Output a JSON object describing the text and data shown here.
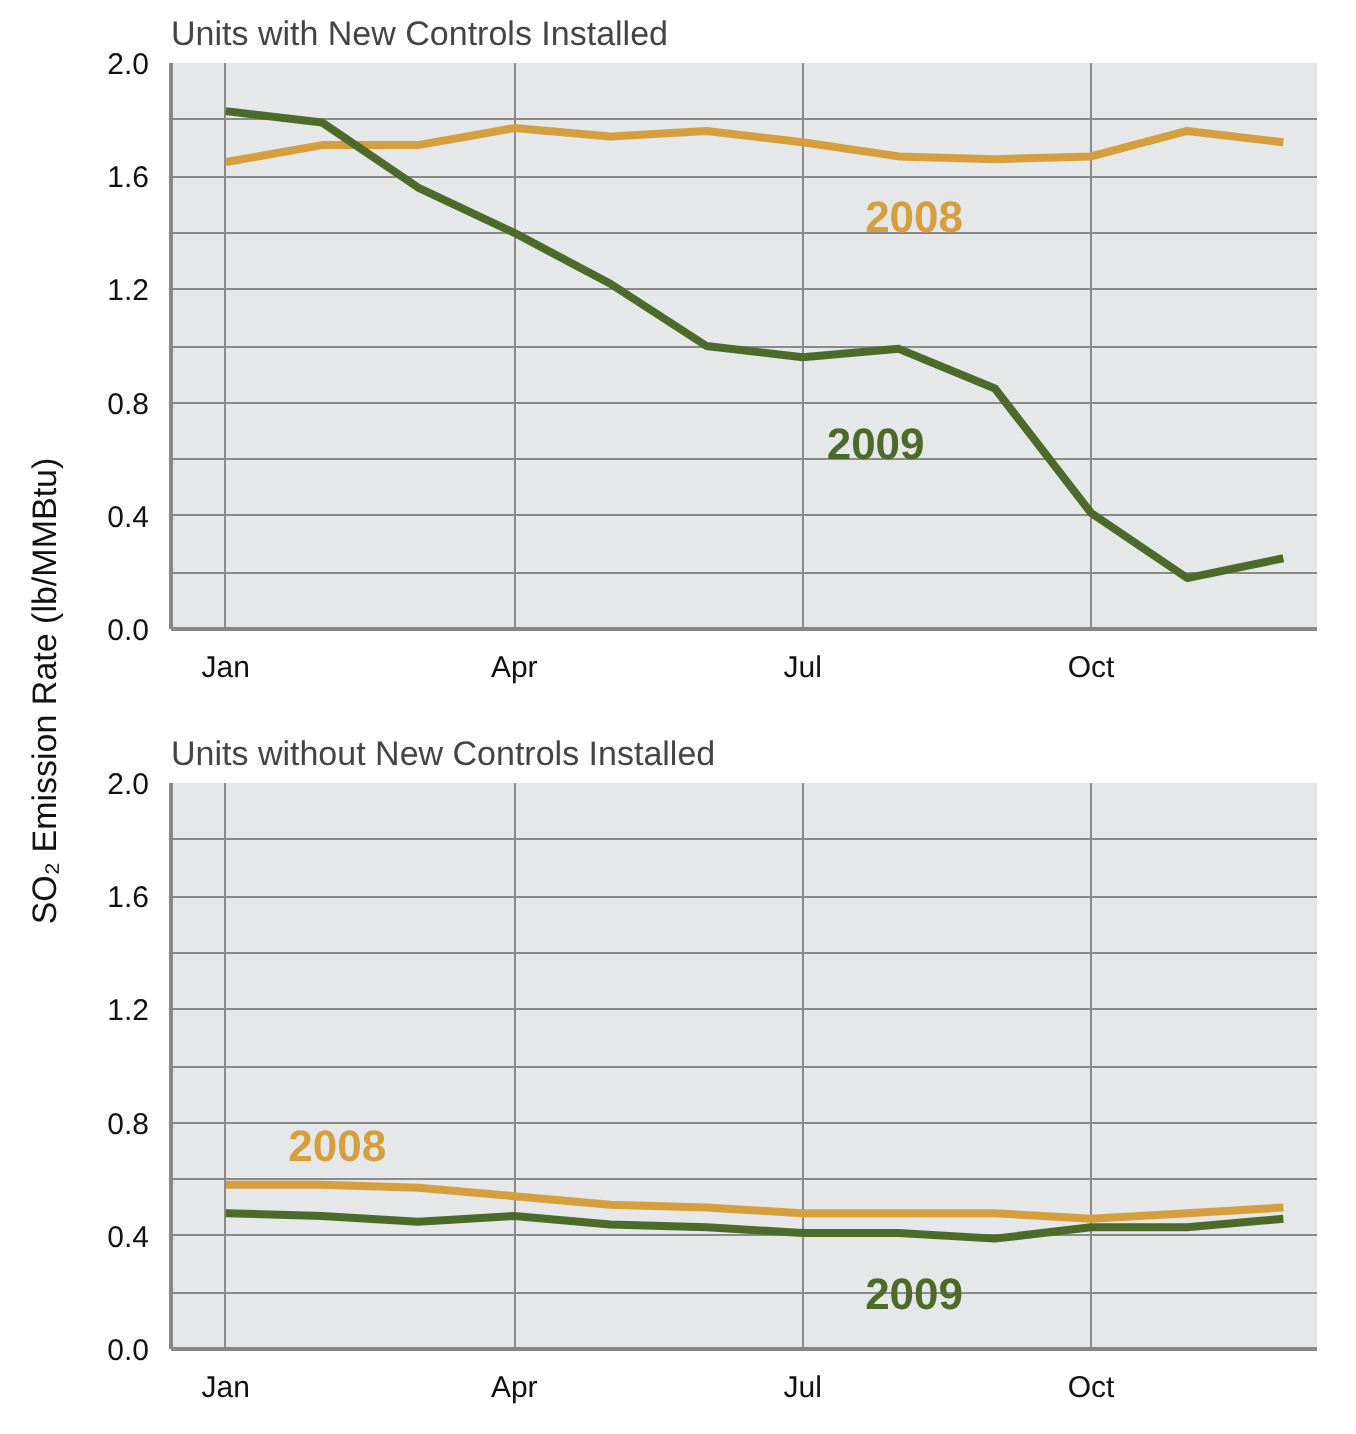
{
  "chart_data": [
    {
      "type": "line",
      "title": "Units with New Controls Installed",
      "ylabel": "SO₂ Emission Rate (lb/MMBtu)",
      "categories": [
        "Jan",
        null,
        null,
        "Apr",
        null,
        null,
        "Jul",
        null,
        null,
        "Oct",
        null,
        null
      ],
      "ylim": [
        0,
        2.0
      ],
      "yticks": [
        {
          "value": 0,
          "label": "0.0"
        },
        {
          "value": 0.2,
          "label": null
        },
        {
          "value": 0.4,
          "label": "0.4"
        },
        {
          "value": 0.6,
          "label": null
        },
        {
          "value": 0.8,
          "label": "0.8"
        },
        {
          "value": 1.0,
          "label": null
        },
        {
          "value": 1.2,
          "label": "1.2"
        },
        {
          "value": 1.4,
          "label": null
        },
        {
          "value": 1.6,
          "label": "1.6"
        },
        {
          "value": 1.8,
          "label": null
        },
        {
          "value": 2.0,
          "label": "2.0"
        }
      ],
      "grid": true,
      "marker": "none",
      "line_style": "solid",
      "series": [
        {
          "name": "2008",
          "color": "#d49f3c",
          "values": [
            1.65,
            1.71,
            1.71,
            1.77,
            1.74,
            1.76,
            1.72,
            1.67,
            1.66,
            1.67,
            1.76,
            1.72
          ]
        },
        {
          "name": "2009",
          "color": "#4e6a2b",
          "values": [
            1.83,
            1.79,
            1.56,
            1.4,
            1.22,
            1.0,
            0.96,
            0.99,
            0.85,
            0.41,
            0.18,
            0.25
          ]
        }
      ]
    },
    {
      "type": "line",
      "title": "Units without New Controls Installed",
      "categories": [
        "Jan",
        null,
        null,
        "Apr",
        null,
        null,
        "Jul",
        null,
        null,
        "Oct",
        null,
        null
      ],
      "ylim": [
        0,
        2.0
      ],
      "yticks": [
        {
          "value": 0,
          "label": "0.0"
        },
        {
          "value": 0.2,
          "label": null
        },
        {
          "value": 0.4,
          "label": "0.4"
        },
        {
          "value": 0.6,
          "label": null
        },
        {
          "value": 0.8,
          "label": "0.8"
        },
        {
          "value": 1.0,
          "label": null
        },
        {
          "value": 1.2,
          "label": "1.2"
        },
        {
          "value": 1.4,
          "label": null
        },
        {
          "value": 1.6,
          "label": "1.6"
        },
        {
          "value": 1.8,
          "label": null
        },
        {
          "value": 2.0,
          "label": "2.0"
        }
      ],
      "grid": true,
      "marker": "none",
      "line_style": "solid",
      "series": [
        {
          "name": "2008",
          "color": "#d49f3c",
          "values": [
            0.58,
            0.58,
            0.57,
            0.54,
            0.51,
            0.5,
            0.48,
            0.48,
            0.48,
            0.46,
            0.48,
            0.5
          ]
        },
        {
          "name": "2009",
          "color": "#4e6a2b",
          "values": [
            0.48,
            0.47,
            0.45,
            0.47,
            0.44,
            0.43,
            0.41,
            0.41,
            0.39,
            0.43,
            0.43,
            0.46
          ]
        }
      ]
    }
  ]
}
